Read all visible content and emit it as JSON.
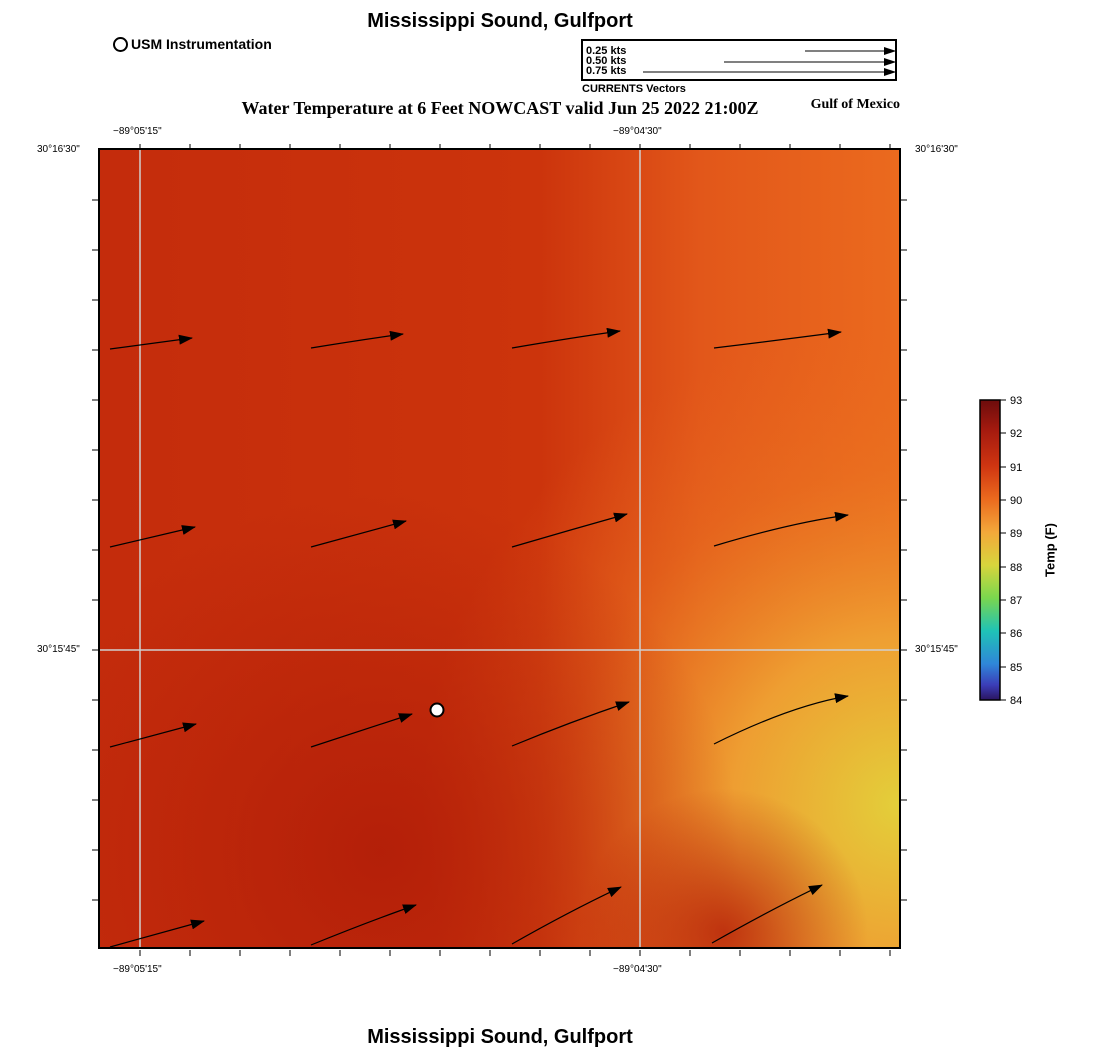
{
  "map": {
    "title": "Mississippi Sound, Gulfport",
    "subtitle": "Water Temperature at 6 Feet NOWCAST valid Jun 25 2022 21:00Z",
    "region_label": "Gulf of Mexico",
    "footer_title": "Mississippi Sound, Gulfport",
    "station_legend": "USM Instrumentation",
    "vector_legend": {
      "caption": "CURRENTS Vectors",
      "entries": [
        "0.25 kts",
        "0.50 kts",
        "0.75 kts"
      ]
    },
    "lon_labels": [
      "−89°05'15\"",
      "−89°04'30\""
    ],
    "lat_labels": [
      "30°16'30\"",
      "30°15'45\""
    ],
    "colorbar": {
      "label": "Temp (F)",
      "ticks": [
        "93",
        "92",
        "91",
        "90",
        "89",
        "88",
        "87",
        "86",
        "85",
        "84"
      ],
      "colors": [
        "#6d0c0c",
        "#a41a0f",
        "#cf3511",
        "#eb6a1e",
        "#f3a83a",
        "#d8d53c",
        "#7ad64e",
        "#1fc3b6",
        "#2f86d9",
        "#3b3db8",
        "#2a1460"
      ]
    },
    "colors": {
      "accent_arrow": "#000000",
      "grid": "#cfcfcf"
    }
  }
}
